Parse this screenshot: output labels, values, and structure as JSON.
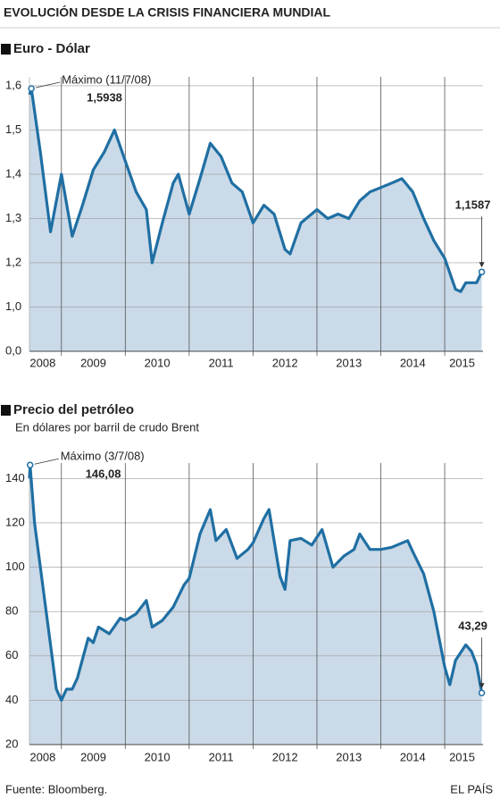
{
  "header": {
    "title": "EVOLUCIÓN DESDE LA CRISIS FINANCIERA MUNDIAL"
  },
  "chart_data": [
    {
      "type": "area",
      "title": "Euro - Dólar",
      "color": "#1f6fa3",
      "fill": "#cbdae8",
      "annotation": "Máximo (11/7/08)",
      "x": [
        2008.5,
        2008.53,
        2008.67,
        2008.83,
        2009.0,
        2009.17,
        2009.33,
        2009.5,
        2009.67,
        2009.83,
        2010.0,
        2010.17,
        2010.33,
        2010.42,
        2010.58,
        2010.75,
        2010.83,
        2011.0,
        2011.17,
        2011.33,
        2011.5,
        2011.67,
        2011.83,
        2012.0,
        2012.17,
        2012.33,
        2012.5,
        2012.58,
        2012.75,
        2013.0,
        2013.17,
        2013.33,
        2013.5,
        2013.67,
        2013.83,
        2014.0,
        2014.17,
        2014.33,
        2014.5,
        2014.67,
        2014.83,
        2015.0,
        2015.17,
        2015.25,
        2015.33,
        2015.5,
        2015.58
      ],
      "values": [
        1.58,
        1.5938,
        1.45,
        1.27,
        1.4,
        1.26,
        1.33,
        1.41,
        1.45,
        1.5,
        1.43,
        1.36,
        1.32,
        1.2,
        1.29,
        1.38,
        1.4,
        1.31,
        1.39,
        1.47,
        1.44,
        1.38,
        1.36,
        1.29,
        1.33,
        1.31,
        1.23,
        1.22,
        1.29,
        1.32,
        1.3,
        1.31,
        1.3,
        1.34,
        1.36,
        1.37,
        1.38,
        1.39,
        1.36,
        1.3,
        1.25,
        1.21,
        1.08,
        1.07,
        1.11,
        1.11,
        1.1587
      ],
      "value_labels": [
        null,
        "1,5938",
        null,
        null,
        null,
        null,
        null,
        null,
        null,
        null,
        null,
        null,
        null,
        null,
        null,
        null,
        null,
        null,
        null,
        null,
        null,
        null,
        null,
        null,
        null,
        null,
        null,
        null,
        null,
        null,
        null,
        null,
        null,
        null,
        null,
        null,
        null,
        null,
        null,
        null,
        null,
        null,
        null,
        null,
        null,
        null,
        "1,1587"
      ],
      "xlim": [
        2008.5,
        2015.6
      ],
      "xticks": [
        2009,
        2010,
        2011,
        2012,
        2013,
        2014,
        2015
      ],
      "year_labels": [
        "2008",
        "2009",
        "2010",
        "2011",
        "2012",
        "2013",
        "2014",
        "2015"
      ],
      "ylim": [
        0,
        1.62
      ],
      "yticks": [
        {
          "value": 0,
          "label": "0,0"
        },
        {
          "value": 1,
          "label": "1,0"
        },
        {
          "value": 1.2,
          "label": "1,2"
        },
        {
          "value": 1.3,
          "label": "1,3"
        },
        {
          "value": 1.4,
          "label": "1,4"
        },
        {
          "value": 1.5,
          "label": "1,5"
        },
        {
          "value": 1.6,
          "label": "1,6"
        }
      ],
      "grid": true
    },
    {
      "type": "area",
      "title": "Precio del petróleo",
      "subtitle": "En dólares por barril de crudo Brent",
      "color": "#1f6fa3",
      "fill": "#cbdae8",
      "annotation": "Máximo (3/7/08)",
      "x": [
        2008.5,
        2008.51,
        2008.58,
        2008.67,
        2008.83,
        2008.92,
        2009.0,
        2009.08,
        2009.17,
        2009.25,
        2009.42,
        2009.5,
        2009.58,
        2009.75,
        2009.92,
        2010.0,
        2010.17,
        2010.33,
        2010.42,
        2010.58,
        2010.75,
        2010.92,
        2011.0,
        2011.17,
        2011.33,
        2011.42,
        2011.58,
        2011.75,
        2011.92,
        2012.0,
        2012.17,
        2012.25,
        2012.42,
        2012.5,
        2012.58,
        2012.75,
        2012.92,
        2013.08,
        2013.25,
        2013.42,
        2013.58,
        2013.67,
        2013.83,
        2014.0,
        2014.17,
        2014.42,
        2014.5,
        2014.67,
        2014.83,
        2015.0,
        2015.08,
        2015.17,
        2015.33,
        2015.42,
        2015.5,
        2015.58
      ],
      "values": [
        140,
        146.08,
        120,
        100,
        65,
        45,
        40,
        45,
        45,
        50,
        68,
        66,
        73,
        70,
        77,
        76,
        79,
        85,
        73,
        76,
        82,
        92,
        95,
        115,
        126,
        112,
        117,
        104,
        108,
        111,
        122,
        126,
        96,
        90,
        112,
        113,
        110,
        117,
        100,
        105,
        108,
        115,
        108,
        108,
        109,
        112,
        107,
        97,
        80,
        55,
        47,
        58,
        65,
        62,
        56,
        43.29
      ],
      "value_labels": [
        null,
        "146,08",
        null,
        null,
        null,
        null,
        null,
        null,
        null,
        null,
        null,
        null,
        null,
        null,
        null,
        null,
        null,
        null,
        null,
        null,
        null,
        null,
        null,
        null,
        null,
        null,
        null,
        null,
        null,
        null,
        null,
        null,
        null,
        null,
        null,
        null,
        null,
        null,
        null,
        null,
        null,
        null,
        null,
        null,
        null,
        null,
        null,
        null,
        null,
        null,
        null,
        null,
        null,
        null,
        null,
        "43,29"
      ],
      "xlim": [
        2008.5,
        2015.6
      ],
      "xticks": [
        2009,
        2010,
        2011,
        2012,
        2013,
        2014,
        2015
      ],
      "year_labels": [
        "2008",
        "2009",
        "2010",
        "2011",
        "2012",
        "2013",
        "2014",
        "2015"
      ],
      "ylim": [
        20,
        147
      ],
      "yticks": [
        20,
        40,
        60,
        80,
        100,
        120,
        140
      ],
      "grid": true
    }
  ],
  "footer": {
    "source": "Fuente: Bloomberg.",
    "brand": "EL PAÍS"
  }
}
